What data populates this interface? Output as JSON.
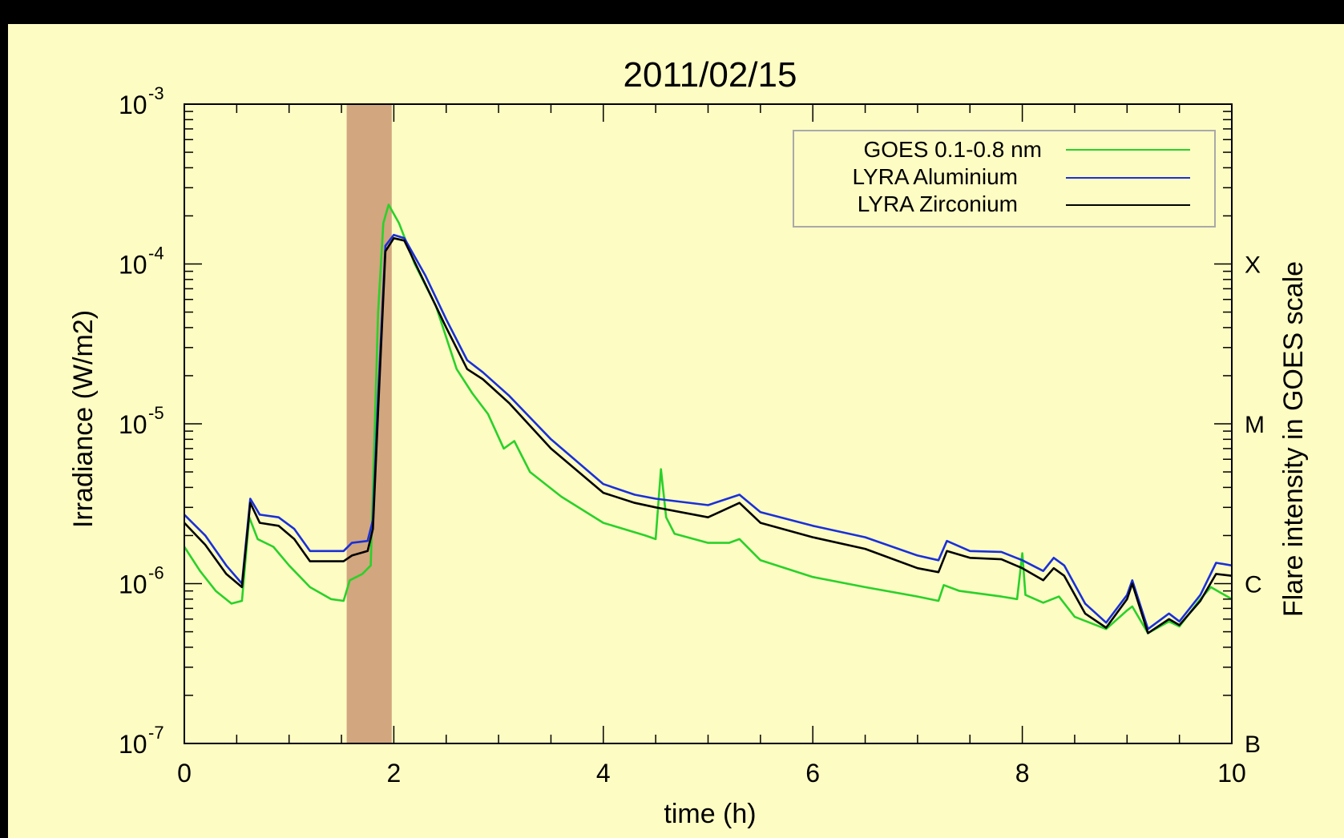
{
  "chart_data": {
    "type": "line",
    "title": "2011/02/15",
    "xlabel": "time (h)",
    "ylabel": "Irradiance (W/m2)",
    "y2label": "Flare intensity in GOES scale",
    "xlim": [
      0,
      10
    ],
    "ylim": [
      1e-07,
      0.001
    ],
    "yscale": "log",
    "x_ticks": [
      "0",
      "2",
      "4",
      "6",
      "8",
      "10"
    ],
    "y_ticks": [
      {
        "base": "10",
        "exp": "-7",
        "value": 1e-07
      },
      {
        "base": "10",
        "exp": "-6",
        "value": 1e-06
      },
      {
        "base": "10",
        "exp": "-5",
        "value": 1e-05
      },
      {
        "base": "10",
        "exp": "-4",
        "value": 0.0001
      },
      {
        "base": "10",
        "exp": "-3",
        "value": 0.001
      }
    ],
    "goes_scale": [
      {
        "label": "B",
        "value": 1e-07
      },
      {
        "label": "C",
        "value": 1e-06
      },
      {
        "label": "M",
        "value": 1e-05
      },
      {
        "label": "X",
        "value": 0.0001
      }
    ],
    "highlight_band": {
      "x_start": 1.55,
      "x_end": 1.98,
      "color": "#d2a67e"
    },
    "grid": false,
    "legend_position": "top-right",
    "series": [
      {
        "name": "GOES 0.1-0.8 nm",
        "color": "#2ad12a",
        "points": [
          [
            0.0,
            1.7e-06
          ],
          [
            0.15,
            1.2e-06
          ],
          [
            0.3,
            9e-07
          ],
          [
            0.45,
            7.5e-07
          ],
          [
            0.55,
            7.8e-07
          ],
          [
            0.62,
            2.6e-06
          ],
          [
            0.7,
            1.9e-06
          ],
          [
            0.85,
            1.7e-06
          ],
          [
            1.0,
            1.3e-06
          ],
          [
            1.2,
            9.5e-07
          ],
          [
            1.4,
            8e-07
          ],
          [
            1.52,
            7.8e-07
          ],
          [
            1.58,
            1.05e-06
          ],
          [
            1.7,
            1.15e-06
          ],
          [
            1.78,
            1.3e-06
          ],
          [
            1.85,
            5e-05
          ],
          [
            1.9,
            0.00018
          ],
          [
            1.95,
            0.000235
          ],
          [
            2.05,
            0.00018
          ],
          [
            2.2,
            0.0001
          ],
          [
            2.4,
            5.5e-05
          ],
          [
            2.6,
            2.2e-05
          ],
          [
            2.75,
            1.55e-05
          ],
          [
            2.9,
            1.15e-05
          ],
          [
            3.05,
            7e-06
          ],
          [
            3.15,
            7.8e-06
          ],
          [
            3.3,
            5e-06
          ],
          [
            3.6,
            3.5e-06
          ],
          [
            4.0,
            2.4e-06
          ],
          [
            4.4,
            2e-06
          ],
          [
            4.5,
            1.9e-06
          ],
          [
            4.55,
            5.2e-06
          ],
          [
            4.6,
            2.6e-06
          ],
          [
            4.68,
            2.05e-06
          ],
          [
            5.0,
            1.8e-06
          ],
          [
            5.2,
            1.8e-06
          ],
          [
            5.3,
            1.9e-06
          ],
          [
            5.5,
            1.4e-06
          ],
          [
            6.0,
            1.1e-06
          ],
          [
            6.5,
            9.5e-07
          ],
          [
            7.0,
            8.3e-07
          ],
          [
            7.2,
            7.8e-07
          ],
          [
            7.25,
            9.8e-07
          ],
          [
            7.4,
            9e-07
          ],
          [
            7.8,
            8.3e-07
          ],
          [
            7.95,
            8e-07
          ],
          [
            8.0,
            1.55e-06
          ],
          [
            8.03,
            8.5e-07
          ],
          [
            8.2,
            7.6e-07
          ],
          [
            8.35,
            8.3e-07
          ],
          [
            8.5,
            6.2e-07
          ],
          [
            8.8,
            5.2e-07
          ],
          [
            9.0,
            6.8e-07
          ],
          [
            9.05,
            7.2e-07
          ],
          [
            9.2,
            4.9e-07
          ],
          [
            9.4,
            5.8e-07
          ],
          [
            9.5,
            5.4e-07
          ],
          [
            9.7,
            8e-07
          ],
          [
            9.8,
            9.5e-07
          ],
          [
            10.0,
            8e-07
          ]
        ]
      },
      {
        "name": "LYRA Aluminium",
        "color": "#1a30d8",
        "points": [
          [
            0.0,
            2.7e-06
          ],
          [
            0.2,
            2e-06
          ],
          [
            0.4,
            1.3e-06
          ],
          [
            0.55,
            1e-06
          ],
          [
            0.63,
            3.4e-06
          ],
          [
            0.72,
            2.7e-06
          ],
          [
            0.9,
            2.6e-06
          ],
          [
            1.05,
            2.2e-06
          ],
          [
            1.2,
            1.6e-06
          ],
          [
            1.52,
            1.6e-06
          ],
          [
            1.6,
            1.8e-06
          ],
          [
            1.75,
            1.85e-06
          ],
          [
            1.8,
            2.5e-06
          ],
          [
            1.85,
            1.5e-05
          ],
          [
            1.92,
            0.00013
          ],
          [
            2.0,
            0.000152
          ],
          [
            2.1,
            0.000145
          ],
          [
            2.3,
            8.5e-05
          ],
          [
            2.5,
            4.5e-05
          ],
          [
            2.7,
            2.5e-05
          ],
          [
            2.85,
            2.1e-05
          ],
          [
            3.1,
            1.5e-05
          ],
          [
            3.5,
            8e-06
          ],
          [
            4.0,
            4.2e-06
          ],
          [
            4.3,
            3.6e-06
          ],
          [
            4.5,
            3.4e-06
          ],
          [
            5.0,
            3.1e-06
          ],
          [
            5.3,
            3.6e-06
          ],
          [
            5.5,
            2.8e-06
          ],
          [
            6.0,
            2.3e-06
          ],
          [
            6.5,
            1.95e-06
          ],
          [
            7.0,
            1.5e-06
          ],
          [
            7.2,
            1.4e-06
          ],
          [
            7.28,
            1.85e-06
          ],
          [
            7.5,
            1.6e-06
          ],
          [
            7.8,
            1.58e-06
          ],
          [
            8.0,
            1.4e-06
          ],
          [
            8.2,
            1.2e-06
          ],
          [
            8.3,
            1.45e-06
          ],
          [
            8.4,
            1.3e-06
          ],
          [
            8.6,
            7.5e-07
          ],
          [
            8.8,
            5.7e-07
          ],
          [
            9.0,
            8.5e-07
          ],
          [
            9.05,
            1.05e-06
          ],
          [
            9.2,
            5.2e-07
          ],
          [
            9.4,
            6.5e-07
          ],
          [
            9.5,
            5.8e-07
          ],
          [
            9.7,
            8.5e-07
          ],
          [
            9.85,
            1.35e-06
          ],
          [
            10.0,
            1.3e-06
          ]
        ]
      },
      {
        "name": "LYRA Zirconium",
        "color": "#000000",
        "points": [
          [
            0.0,
            2.4e-06
          ],
          [
            0.2,
            1.75e-06
          ],
          [
            0.4,
            1.15e-06
          ],
          [
            0.55,
            9.5e-07
          ],
          [
            0.63,
            3.2e-06
          ],
          [
            0.72,
            2.4e-06
          ],
          [
            0.9,
            2.3e-06
          ],
          [
            1.05,
            1.9e-06
          ],
          [
            1.2,
            1.38e-06
          ],
          [
            1.52,
            1.38e-06
          ],
          [
            1.6,
            1.5e-06
          ],
          [
            1.75,
            1.6e-06
          ],
          [
            1.8,
            2.2e-06
          ],
          [
            1.85,
            1.2e-05
          ],
          [
            1.92,
            0.00012
          ],
          [
            2.0,
            0.000145
          ],
          [
            2.1,
            0.00014
          ],
          [
            2.3,
            7.5e-05
          ],
          [
            2.5,
            4e-05
          ],
          [
            2.7,
            2.2e-05
          ],
          [
            2.85,
            1.9e-05
          ],
          [
            3.1,
            1.35e-05
          ],
          [
            3.5,
            7e-06
          ],
          [
            4.0,
            3.7e-06
          ],
          [
            4.3,
            3.2e-06
          ],
          [
            4.5,
            3e-06
          ],
          [
            5.0,
            2.6e-06
          ],
          [
            5.3,
            3.2e-06
          ],
          [
            5.5,
            2.4e-06
          ],
          [
            6.0,
            1.95e-06
          ],
          [
            6.5,
            1.65e-06
          ],
          [
            7.0,
            1.25e-06
          ],
          [
            7.2,
            1.18e-06
          ],
          [
            7.28,
            1.6e-06
          ],
          [
            7.5,
            1.45e-06
          ],
          [
            7.8,
            1.42e-06
          ],
          [
            8.0,
            1.25e-06
          ],
          [
            8.2,
            1.05e-06
          ],
          [
            8.3,
            1.25e-06
          ],
          [
            8.4,
            1.12e-06
          ],
          [
            8.6,
            6.5e-07
          ],
          [
            8.8,
            5.3e-07
          ],
          [
            9.0,
            8e-07
          ],
          [
            9.05,
            1e-06
          ],
          [
            9.2,
            4.9e-07
          ],
          [
            9.4,
            6e-07
          ],
          [
            9.5,
            5.5e-07
          ],
          [
            9.7,
            7.8e-07
          ],
          [
            9.85,
            1.15e-06
          ],
          [
            10.0,
            1.12e-06
          ]
        ]
      }
    ]
  }
}
